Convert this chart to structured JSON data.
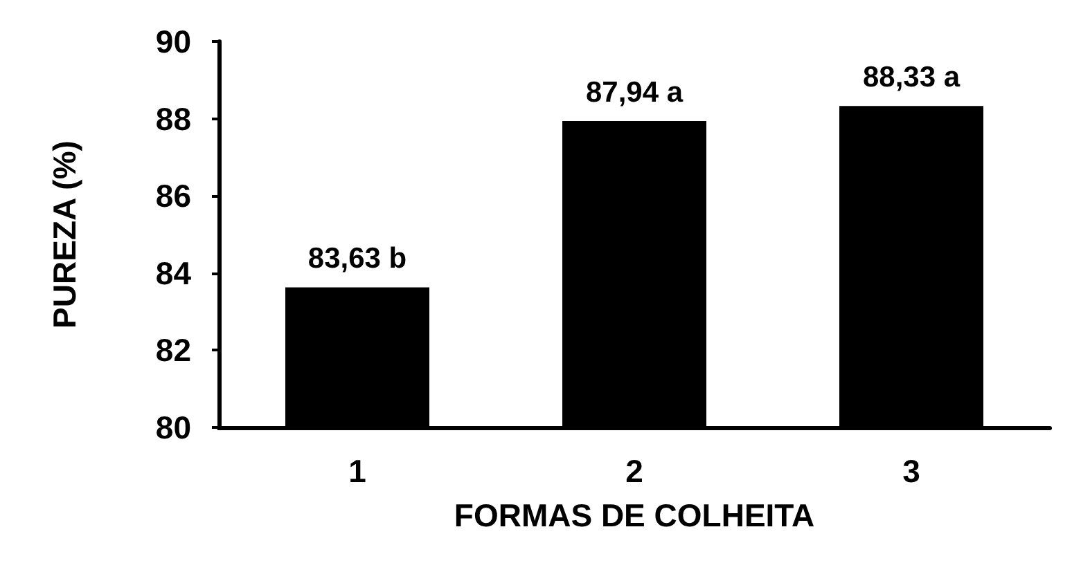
{
  "chart_data": {
    "type": "bar",
    "xlabel": "FORMAS DE COLHEITA",
    "ylabel": "PUREZA (%)",
    "categories": [
      "1",
      "2",
      "3"
    ],
    "values": [
      83.63,
      87.94,
      88.33
    ],
    "value_labels": [
      "83,63 b",
      "87,94 a",
      "88,33 a"
    ],
    "color": "#000000",
    "ylim": [
      80,
      90
    ],
    "yticks": [
      80,
      82,
      84,
      86,
      88,
      90
    ],
    "grid": false
  }
}
